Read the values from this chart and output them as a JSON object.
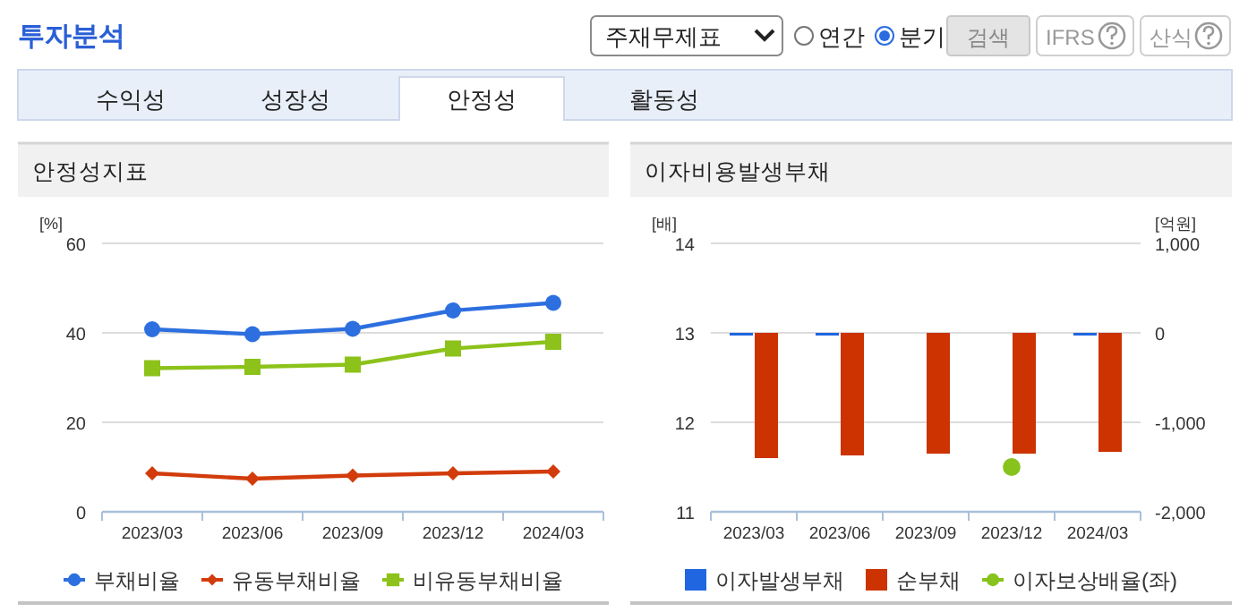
{
  "chart_data": [
    {
      "type": "other",
      "title": "투자분석",
      "annotations": [
        "주재무제표",
        "연간",
        "분기",
        "검색",
        "IFRS",
        "산식",
        "수익성",
        "성장성",
        "안정성",
        "활동성"
      ]
    },
    {
      "type": "line",
      "title": "안정성지표",
      "ylabel": "[%]",
      "categories": [
        "2023/03",
        "2023/06",
        "2023/09",
        "2023/12",
        "2024/03"
      ],
      "ylim": [
        0,
        60
      ],
      "yticks": [
        0,
        20,
        40,
        60
      ],
      "grid": "y",
      "legend": "bottom",
      "series": [
        {
          "name": "부채비율",
          "color": "#2d6fdf",
          "marker": "circle",
          "values": [
            40.8,
            39.7,
            40.9,
            45.0,
            46.7
          ]
        },
        {
          "name": "유동부채비율",
          "color": "#d23c0c",
          "marker": "diamond",
          "values": [
            8.6,
            7.4,
            8.1,
            8.6,
            9.0
          ]
        },
        {
          "name": "비유동부채비율",
          "color": "#8cc21a",
          "marker": "square",
          "values": [
            32.1,
            32.4,
            32.9,
            36.5,
            38.0
          ]
        }
      ]
    },
    {
      "type": "bar",
      "title": "이자비용발생부채",
      "ylabel": "[배]",
      "y2label": "[억원]",
      "categories": [
        "2023/03",
        "2023/06",
        "2023/09",
        "2023/12",
        "2024/03"
      ],
      "ylim": [
        11,
        14
      ],
      "yticks": [
        11,
        12,
        13,
        14
      ],
      "y2lim": [
        -2000,
        1000
      ],
      "y2ticks": [
        {
          "value": -2000,
          "label": "-2,000"
        },
        {
          "value": -1000,
          "label": "-1,000"
        },
        0,
        {
          "value": 1000,
          "label": "1,000"
        }
      ],
      "grid": "y",
      "legend": "bottom",
      "series": [
        {
          "name": "이자발생부채",
          "color": "#1f66e0",
          "axis": "y2",
          "values": [
            0,
            0,
            null,
            null,
            0
          ]
        },
        {
          "name": "순부채",
          "color": "#cc3300",
          "axis": "y2",
          "values": [
            -1400,
            -1370,
            -1350,
            -1350,
            -1330
          ]
        },
        {
          "name": "이자보상배율(좌)",
          "type": "scatter",
          "color": "#88c21c",
          "marker": "circle",
          "values": [
            null,
            null,
            null,
            11.5,
            null
          ]
        }
      ]
    }
  ]
}
